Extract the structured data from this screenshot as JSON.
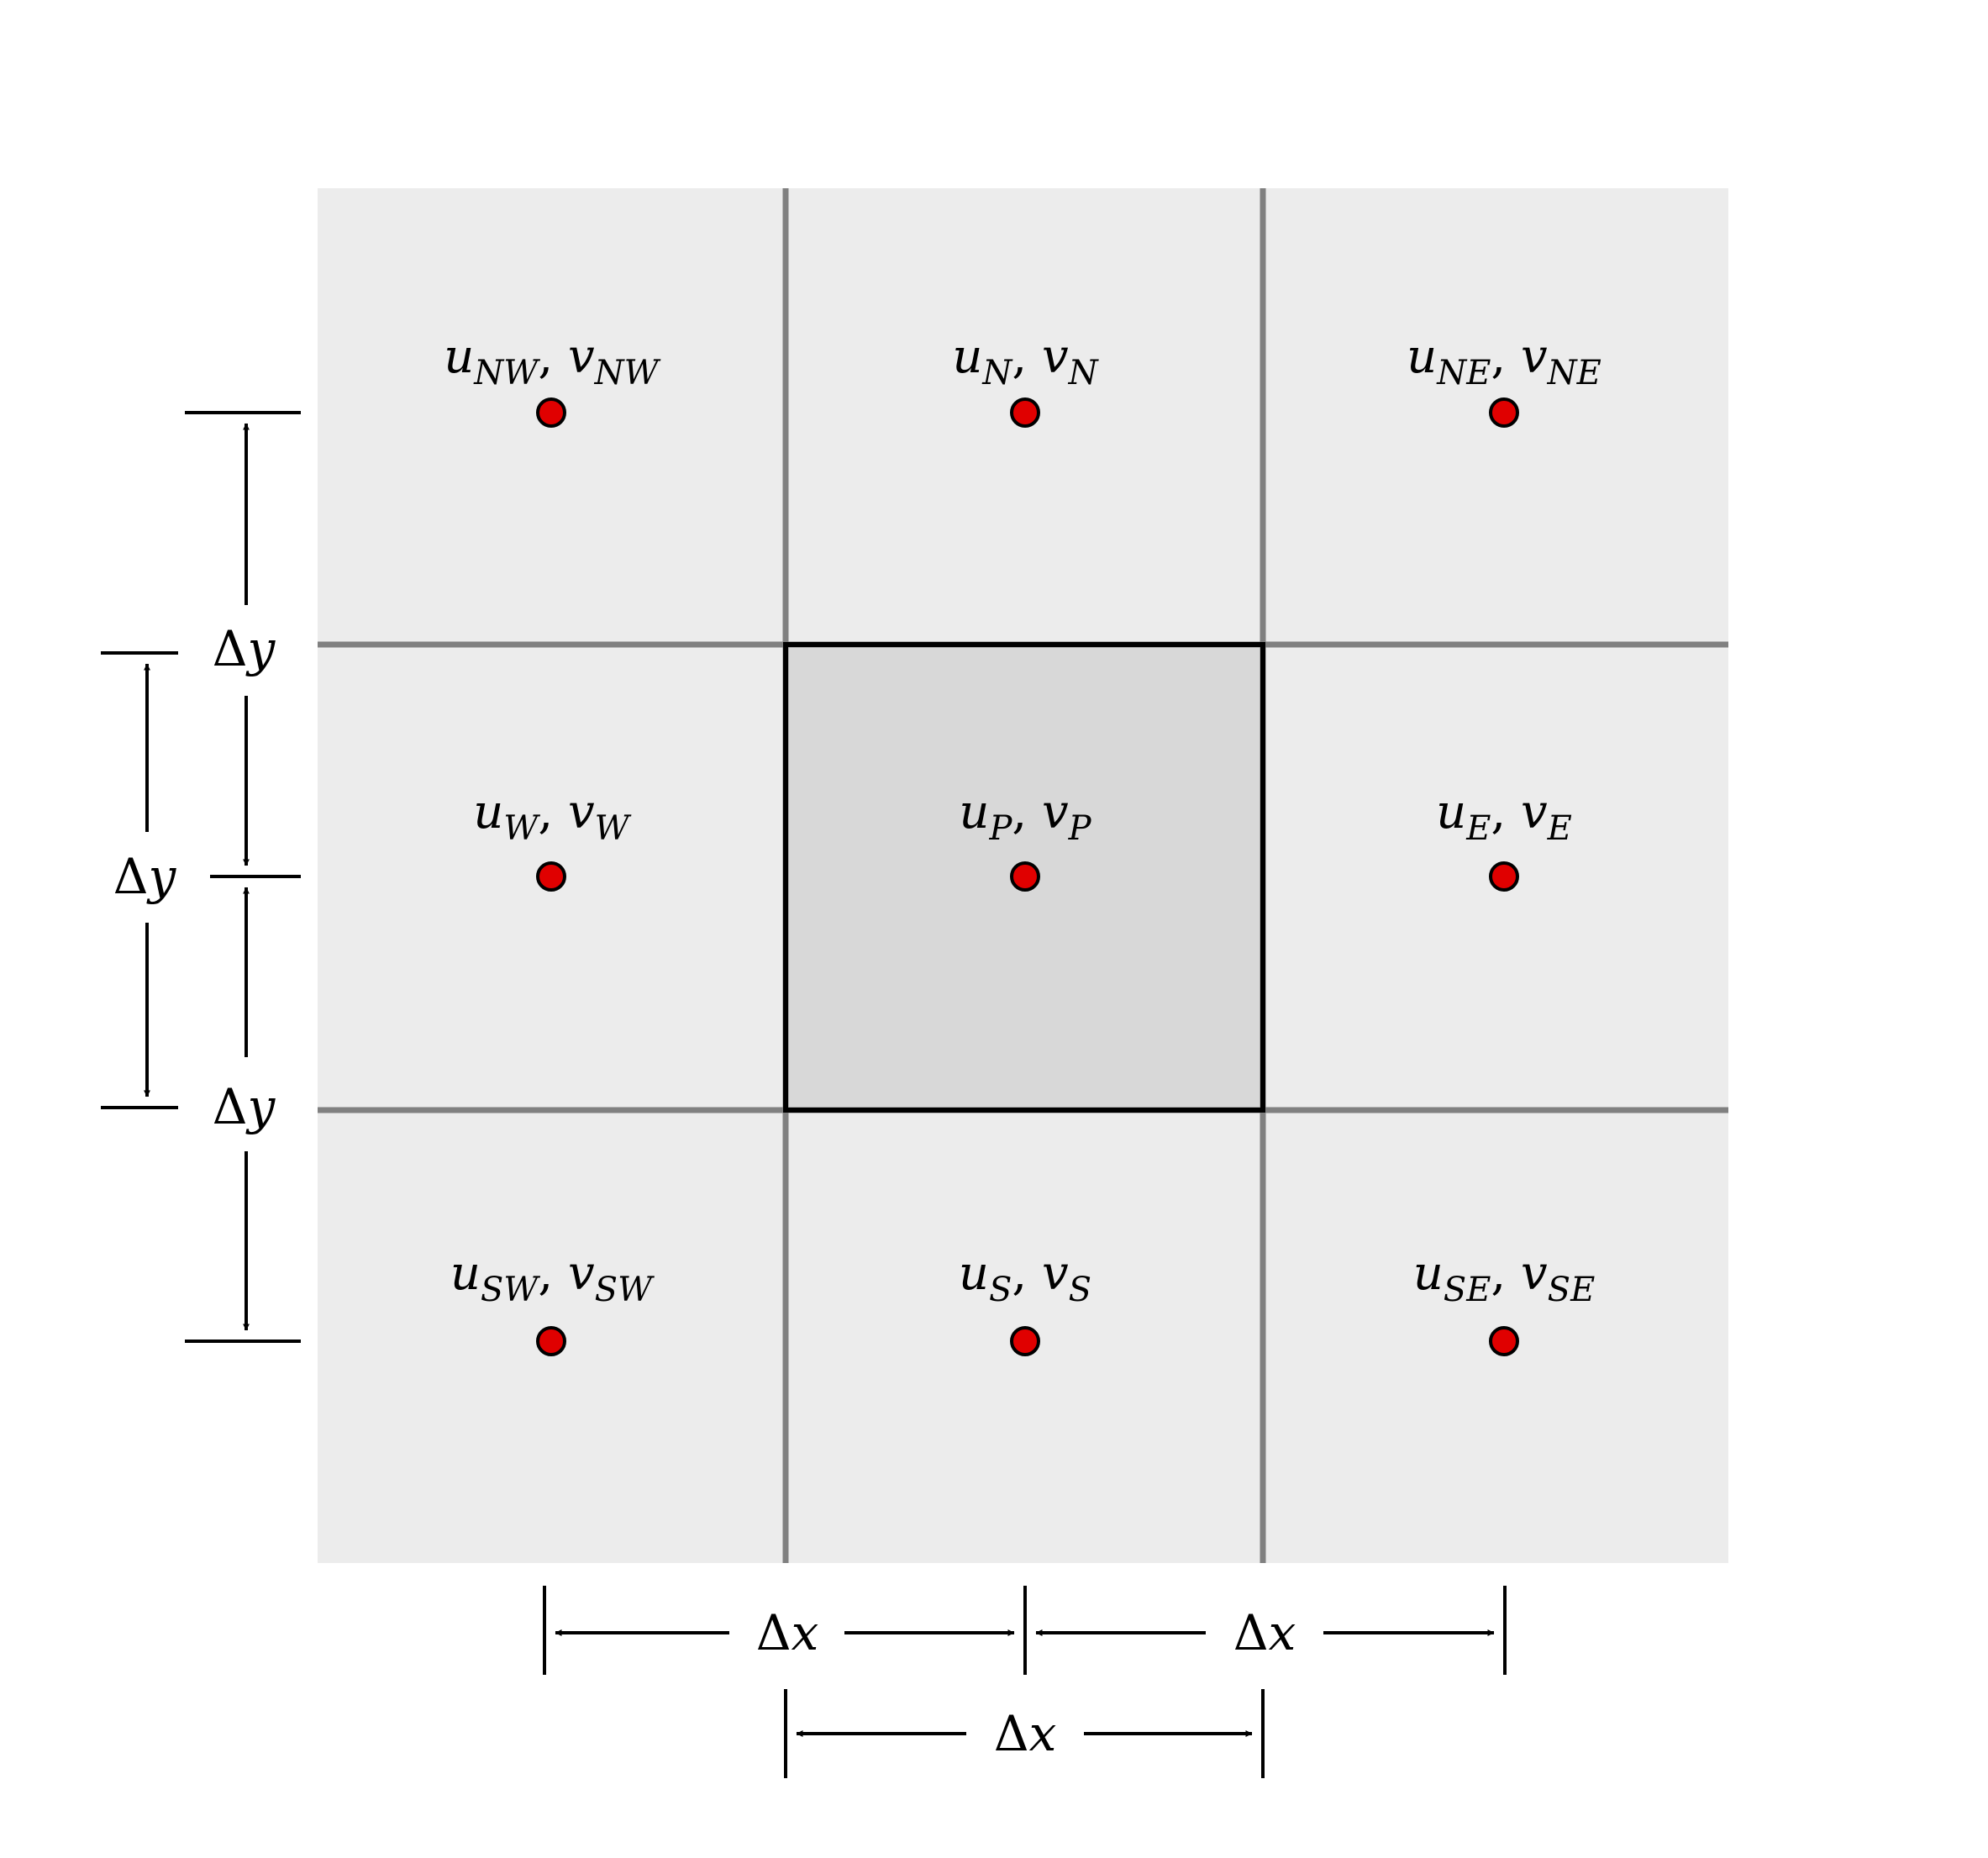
{
  "colors": {
    "background": "#ffffff",
    "cell_fill": "#ececec",
    "center_cell_fill": "#d8d8d8",
    "grid_line": "#808080",
    "center_border": "#000000",
    "node_fill": "#e00000",
    "node_stroke": "#000000",
    "dimension_line": "#000000"
  },
  "cells": [
    {
      "id": "NW",
      "u": "u",
      "v": "v",
      "sub": "NW"
    },
    {
      "id": "N",
      "u": "u",
      "v": "v",
      "sub": "N"
    },
    {
      "id": "NE",
      "u": "u",
      "v": "v",
      "sub": "NE"
    },
    {
      "id": "W",
      "u": "u",
      "v": "v",
      "sub": "W"
    },
    {
      "id": "P",
      "u": "u",
      "v": "v",
      "sub": "P"
    },
    {
      "id": "E",
      "u": "u",
      "v": "v",
      "sub": "E"
    },
    {
      "id": "SW",
      "u": "u",
      "v": "v",
      "sub": "SW"
    },
    {
      "id": "S",
      "u": "u",
      "v": "v",
      "sub": "S"
    },
    {
      "id": "SE",
      "u": "u",
      "v": "v",
      "sub": "SE"
    }
  ],
  "separator": ",",
  "dimensions": {
    "delta_symbol": "Δ",
    "x_var": "x",
    "y_var": "y"
  }
}
